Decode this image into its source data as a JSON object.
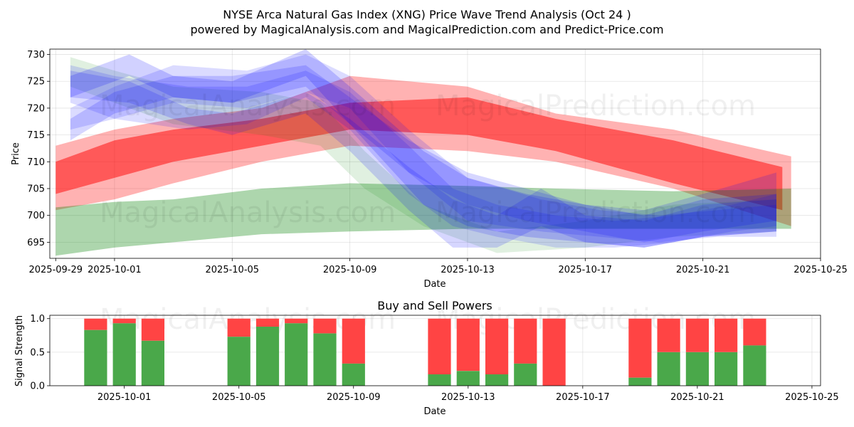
{
  "title_line1": "NYSE Arca Natural Gas Index (XNG) Price Wave Trend Analysis (Oct 24 )",
  "title_line2": "powered by MagicalAnalysis.com and MagicalPrediction.com and Predict-Price.com",
  "watermarks": [
    "MagicalAnalysis.com",
    "MagicalPrediction.com"
  ],
  "colors": {
    "red": "#ff0000",
    "green": "#008000",
    "blue": "#0000ff",
    "buy": "#4aa84a",
    "sell": "#ff4444"
  },
  "chart_data": [
    {
      "type": "area",
      "title": "",
      "xlabel": "Date",
      "ylabel": "Price",
      "x_tick_labels": [
        "2025-09-29",
        "2025-10-01",
        "2025-10-05",
        "2025-10-09",
        "2025-10-13",
        "2025-10-17",
        "2025-10-21",
        "2025-10-25"
      ],
      "y_tick_labels": [
        "695",
        "700",
        "705",
        "710",
        "715",
        "720",
        "725",
        "730"
      ],
      "xlim_days": [
        -0.2,
        26
      ],
      "ylim": [
        692,
        731
      ],
      "bands": [
        {
          "color": "red",
          "alpha": 0.3,
          "days": [
            0,
            2,
            4,
            7,
            10,
            14,
            17,
            21,
            25
          ],
          "upper": [
            713,
            716,
            718,
            720,
            726,
            724,
            719,
            716,
            711
          ],
          "lower": [
            701,
            703,
            706,
            710,
            713,
            712,
            710,
            705,
            698
          ]
        },
        {
          "color": "red",
          "alpha": 0.5,
          "days": [
            0,
            2,
            4,
            7,
            10,
            14,
            17,
            21,
            24.7
          ],
          "upper": [
            710,
            714,
            716,
            718,
            721,
            722,
            718,
            714,
            709
          ],
          "lower": [
            704,
            707,
            710,
            713,
            716,
            715,
            712,
            706,
            701
          ]
        },
        {
          "color": "green",
          "alpha": 0.32,
          "days": [
            0,
            2,
            4,
            7,
            10,
            14,
            17,
            21,
            25
          ],
          "upper": [
            701.5,
            702.5,
            703,
            705,
            706,
            705.5,
            705,
            704.5,
            705
          ],
          "lower": [
            692.5,
            694,
            695,
            696.5,
            697,
            697.5,
            697.5,
            697.5,
            697.5
          ]
        },
        {
          "color": "green",
          "alpha": 0.12,
          "days": [
            0.5,
            2,
            4,
            7,
            9,
            10.5,
            12.5,
            15,
            18,
            21,
            24.5
          ],
          "upper": [
            729.5,
            727,
            724,
            723,
            721,
            712,
            702,
            697,
            699,
            702,
            703
          ],
          "lower": [
            724,
            721,
            717,
            715,
            713,
            705,
            698,
            693,
            694,
            696,
            697
          ]
        },
        {
          "color": "blue",
          "alpha": 0.18,
          "days": [
            0.5,
            2.5,
            4,
            6,
            8.5,
            10,
            12.5,
            14,
            16,
            18,
            20,
            22,
            24.5
          ],
          "upper": [
            726,
            730,
            726,
            725,
            731,
            724,
            712,
            707,
            704,
            702,
            700,
            703,
            704
          ],
          "lower": [
            722,
            726,
            722,
            721,
            726,
            717,
            702,
            698,
            696,
            695,
            694,
            696,
            697
          ]
        },
        {
          "color": "blue",
          "alpha": 0.16,
          "days": [
            0.5,
            2.5,
            4.5,
            6,
            8.5,
            10,
            12,
            13.5,
            15,
            16.5,
            18,
            20,
            22,
            24.5
          ],
          "upper": [
            727,
            725,
            720,
            719,
            723,
            718,
            709,
            703,
            700,
            705,
            700,
            699,
            702,
            703
          ],
          "lower": [
            722,
            721,
            717,
            715,
            719,
            712,
            701,
            694,
            694,
            698,
            695,
            694,
            696,
            697
          ]
        },
        {
          "color": "blue",
          "alpha": 0.16,
          "days": [
            0.5,
            2,
            4,
            6,
            8.5,
            10,
            12,
            14,
            16,
            18,
            20,
            22,
            24.5
          ],
          "upper": [
            718,
            723,
            726,
            726,
            728,
            722,
            714,
            708,
            705,
            702,
            701,
            704,
            708
          ],
          "lower": [
            714,
            719,
            722,
            721,
            724,
            717,
            708,
            702,
            699,
            697,
            695,
            697,
            699
          ]
        },
        {
          "color": "blue",
          "alpha": 0.14,
          "days": [
            0.5,
            2,
            4.5,
            6.5,
            8.5,
            10,
            12,
            13.5,
            15,
            17,
            19,
            21,
            23,
            24.5
          ],
          "upper": [
            728,
            726,
            724,
            724,
            727,
            723,
            713,
            705,
            702,
            700,
            699,
            700,
            702,
            704
          ],
          "lower": [
            721,
            718,
            716,
            717,
            722,
            716,
            704,
            698,
            696,
            694,
            694,
            695,
            697,
            698
          ]
        },
        {
          "color": "blue",
          "alpha": 0.14,
          "days": [
            0.5,
            2,
            4,
            6.5,
            8.5,
            10,
            12,
            14,
            16.5,
            18.5,
            20.5,
            22.5,
            24.5
          ],
          "upper": [
            720,
            724,
            728,
            727,
            730,
            726,
            716,
            707,
            703,
            701,
            700,
            701,
            702
          ],
          "lower": [
            716,
            718,
            721,
            720,
            723,
            720,
            708,
            699,
            697,
            696,
            695,
            696,
            696
          ]
        }
      ]
    },
    {
      "type": "bar",
      "title": "Buy and Sell Powers",
      "xlabel": "Date",
      "ylabel": "Signal Strength",
      "x_tick_labels": [
        "2025-10-01",
        "2025-10-05",
        "2025-10-09",
        "2025-10-13",
        "2025-10-17",
        "2025-10-21",
        "2025-10-25"
      ],
      "y_tick_labels": [
        "0.0",
        "0.5",
        "1.0"
      ],
      "xlim_days": [
        -0.6,
        26.3
      ],
      "ylim": [
        0,
        1.05
      ],
      "series": [
        {
          "name": "Buy",
          "color": "buy"
        },
        {
          "name": "Sell",
          "color": "sell"
        }
      ],
      "bars": [
        {
          "day": 1,
          "buy": 0.83
        },
        {
          "day": 2,
          "buy": 0.93
        },
        {
          "day": 3,
          "buy": 0.67
        },
        {
          "day": 6,
          "buy": 0.73
        },
        {
          "day": 7,
          "buy": 0.88
        },
        {
          "day": 8,
          "buy": 0.93
        },
        {
          "day": 9,
          "buy": 0.78
        },
        {
          "day": 10,
          "buy": 0.33
        },
        {
          "day": 13,
          "buy": 0.17
        },
        {
          "day": 14,
          "buy": 0.22
        },
        {
          "day": 15,
          "buy": 0.17
        },
        {
          "day": 16,
          "buy": 0.33
        },
        {
          "day": 17,
          "buy": 0.0
        },
        {
          "day": 20,
          "buy": 0.12
        },
        {
          "day": 21,
          "buy": 0.5
        },
        {
          "day": 22,
          "buy": 0.5
        },
        {
          "day": 23,
          "buy": 0.5
        },
        {
          "day": 24,
          "buy": 0.6
        }
      ]
    }
  ]
}
